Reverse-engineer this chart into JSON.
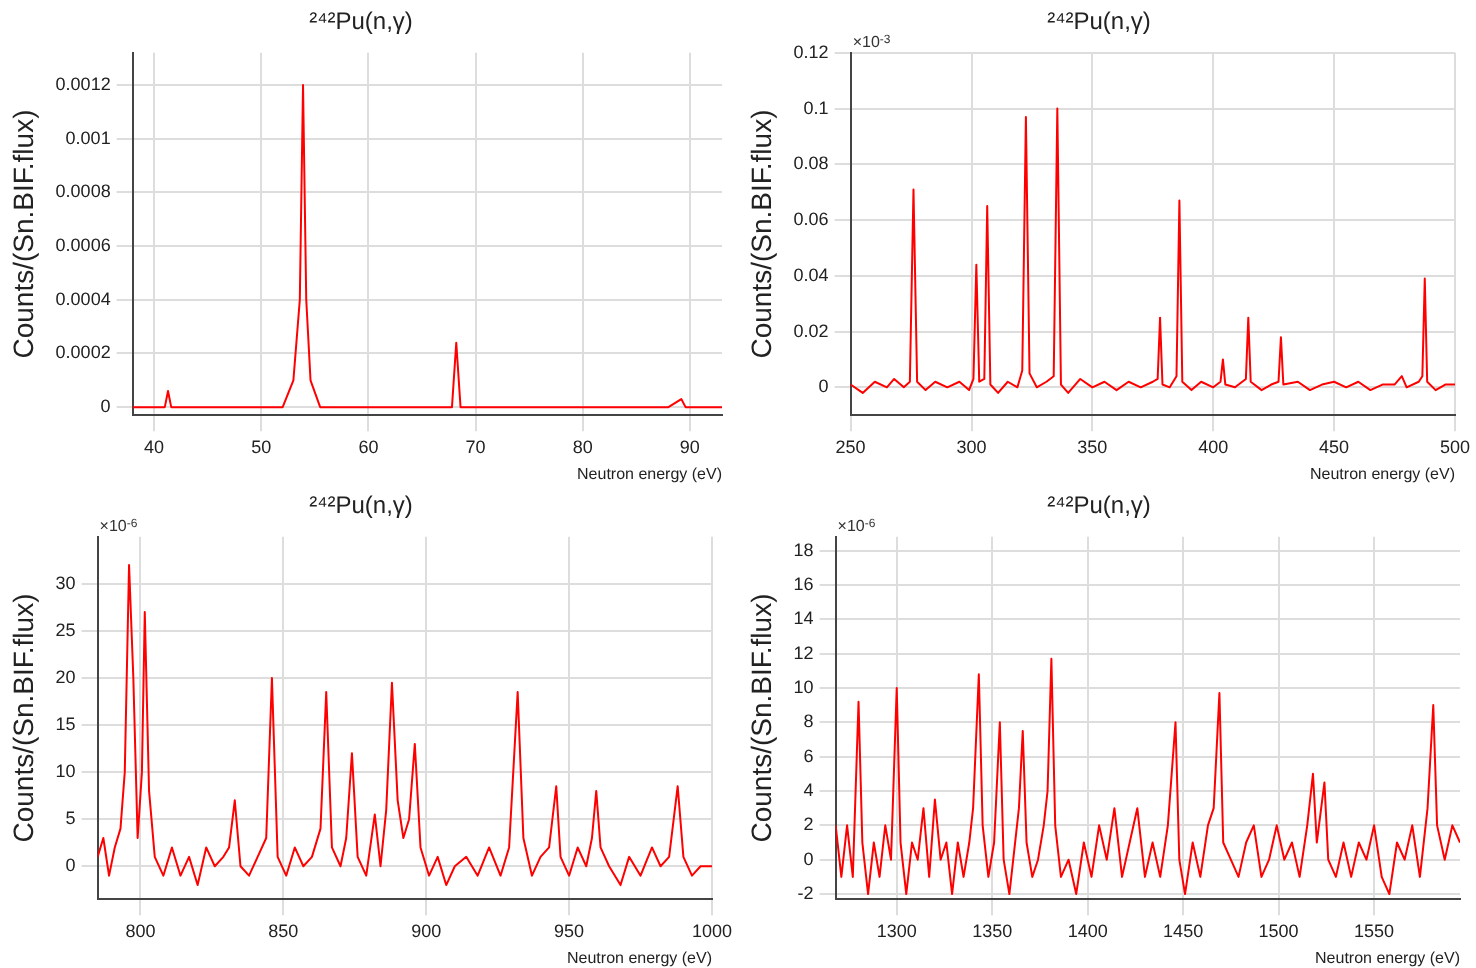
{
  "chart_data": [
    {
      "type": "line",
      "title": "²⁴²Pu(n,γ)",
      "xlabel": "Neutron energy (eV)",
      "ylabel": "Counts/(Sn.BIF.flux)",
      "grid": true,
      "xlim": [
        38,
        93
      ],
      "xticks": [
        40,
        50,
        60,
        70,
        80,
        90
      ],
      "ylim": [
        -3e-05,
        0.00132
      ],
      "yticks": [
        0,
        0.0002,
        0.0004,
        0.0006,
        0.0008,
        0.001,
        0.0012
      ],
      "x": [
        38,
        40,
        41,
        41.3,
        41.6,
        43,
        46,
        50,
        52,
        53,
        53.6,
        53.9,
        54.2,
        54.6,
        55.5,
        58,
        62,
        66,
        67.8,
        68.2,
        68.6,
        72,
        76,
        80,
        84,
        88,
        89.2,
        89.6,
        93
      ],
      "series": [
        {
          "color": "#ff0000",
          "values": [
            0,
            0,
            0,
            6e-05,
            0,
            0,
            0,
            0,
            0,
            0.0001,
            0.0004,
            0.0012,
            0.0004,
            0.0001,
            0,
            0,
            0,
            0,
            0,
            0.00024,
            0,
            0,
            0,
            0,
            0,
            0,
            3e-05,
            0,
            0
          ]
        }
      ]
    },
    {
      "type": "line",
      "title": "²⁴²Pu(n,γ)",
      "xlabel": "Neutron energy (eV)",
      "ylabel": "Counts/(Sn.BIF.flux)",
      "grid": true,
      "annotations": [
        "×10$^{-3}$"
      ],
      "xlim": [
        250,
        500
      ],
      "xticks": [
        250,
        300,
        350,
        400,
        450,
        500
      ],
      "ylim": [
        -0.01,
        0.12
      ],
      "yticks": [
        0,
        0.02,
        0.04,
        0.06,
        0.08,
        0.1,
        0.12
      ],
      "x": [
        250,
        255,
        260,
        265,
        268,
        272,
        274.5,
        276,
        277.5,
        281,
        285,
        290,
        295,
        299,
        300.8,
        302,
        303.2,
        305.3,
        306.5,
        307.8,
        311,
        315,
        319,
        321,
        322.5,
        324,
        327,
        331,
        334,
        335.5,
        337,
        340,
        345,
        350,
        355,
        360,
        365,
        370,
        375,
        377,
        378,
        379,
        382,
        384.8,
        386,
        387.2,
        391,
        395,
        400,
        403,
        404,
        405,
        409,
        413.5,
        414.5,
        415.5,
        420,
        424,
        427,
        428,
        429,
        435,
        440,
        445,
        450,
        455,
        460,
        465,
        470,
        475,
        478,
        480,
        485,
        486.5,
        487.5,
        488.5,
        492,
        496,
        500
      ],
      "series": [
        {
          "color": "#ff0000",
          "values": [
            0.001,
            -0.002,
            0.002,
            0,
            0.003,
            0,
            0.002,
            0.071,
            0.002,
            -0.001,
            0.002,
            0,
            0.002,
            -0.001,
            0.003,
            0.044,
            0.002,
            0.003,
            0.065,
            0.001,
            -0.002,
            0.002,
            0,
            0.006,
            0.097,
            0.005,
            0,
            0.002,
            0.004,
            0.1,
            0.001,
            -0.002,
            0.003,
            0,
            0.002,
            -0.001,
            0.002,
            0,
            0.002,
            0.003,
            0.025,
            0.001,
            0,
            0.004,
            0.067,
            0.002,
            -0.001,
            0.002,
            0,
            0.002,
            0.01,
            0.001,
            0,
            0.003,
            0.025,
            0.002,
            -0.001,
            0.001,
            0.002,
            0.018,
            0.001,
            0.002,
            -0.001,
            0.001,
            0.002,
            0,
            0.002,
            -0.001,
            0.001,
            0.001,
            0.004,
            0,
            0.002,
            0.004,
            0.039,
            0.002,
            -0.001,
            0.001,
            0.001
          ]
        }
      ]
    },
    {
      "type": "line",
      "title": "²⁴²Pu(n,γ)",
      "xlabel": "Neutron energy (eV)",
      "ylabel": "Counts/(Sn.BIF.flux)",
      "grid": true,
      "annotations": [
        "×10$^{-6}$"
      ],
      "xlim": [
        785,
        1000
      ],
      "xticks": [
        800,
        850,
        900,
        950,
        1000
      ],
      "ylim": [
        -3.5,
        35
      ],
      "yticks": [
        0,
        5,
        10,
        15,
        20,
        25,
        30
      ],
      "x": [
        785,
        787,
        789,
        791,
        793,
        794.5,
        796,
        797.5,
        799,
        800.5,
        801.5,
        803,
        805,
        808,
        811,
        814,
        817,
        820,
        823,
        826,
        829,
        831,
        833,
        835,
        838,
        841,
        844,
        846,
        848,
        851,
        854,
        857,
        860,
        863,
        865,
        867,
        870,
        872,
        874,
        876,
        879,
        882,
        884,
        886,
        888,
        890,
        892,
        894,
        896,
        898,
        901,
        904,
        907,
        910,
        914,
        918,
        922,
        926,
        929,
        932,
        934,
        937,
        940,
        943,
        945.5,
        947,
        950,
        953,
        956,
        958,
        959.5,
        961,
        964,
        968,
        971,
        975,
        979,
        982,
        985,
        988,
        990,
        993,
        996,
        1000
      ],
      "series": [
        {
          "color": "#ff0000",
          "values": [
            1,
            3,
            -1,
            2,
            4,
            10,
            32,
            20,
            3,
            10,
            27,
            8,
            1,
            -1,
            2,
            -1,
            1,
            -2,
            2,
            0,
            1,
            2,
            7,
            0,
            -1,
            1,
            3,
            20,
            1,
            -1,
            2,
            0,
            1,
            4,
            18.5,
            2,
            0,
            3,
            12,
            1,
            -1,
            5.5,
            0,
            6,
            19.5,
            7,
            3,
            5,
            13,
            2,
            -1,
            1,
            -2,
            0,
            1,
            -1,
            2,
            -1,
            2,
            18.5,
            3,
            -1,
            1,
            2,
            8.5,
            1,
            -1,
            2,
            0,
            3,
            8,
            2,
            0,
            -2,
            1,
            -1,
            2,
            0,
            1,
            8.5,
            1,
            -1,
            0,
            0
          ]
        }
      ]
    },
    {
      "type": "line",
      "title": "²⁴²Pu(n,γ)",
      "xlabel": "Neutron energy (eV)",
      "ylabel": "Counts/(Sn.BIF.flux)",
      "grid": true,
      "annotations": [
        "×10$^{-6}$"
      ],
      "xlim": [
        1268,
        1595
      ],
      "xticks": [
        1300,
        1350,
        1400,
        1450,
        1500,
        1550
      ],
      "ylim": [
        -2.3,
        18.8
      ],
      "yticks": [
        -2,
        0,
        2,
        4,
        6,
        8,
        10,
        12,
        14,
        16,
        18
      ],
      "x": [
        1268,
        1271,
        1274,
        1277,
        1280,
        1282,
        1285,
        1288,
        1291,
        1294,
        1297,
        1300,
        1302,
        1305,
        1308,
        1311,
        1314,
        1317,
        1320,
        1323,
        1326,
        1329,
        1332,
        1335,
        1338,
        1340,
        1343,
        1345,
        1348,
        1351,
        1354,
        1356,
        1359,
        1362,
        1364,
        1366,
        1368,
        1371,
        1374,
        1377,
        1379,
        1381,
        1383,
        1386,
        1390,
        1394,
        1398,
        1402,
        1406,
        1410,
        1414,
        1418,
        1422,
        1426,
        1430,
        1434,
        1438,
        1442,
        1446,
        1448,
        1451,
        1455,
        1459,
        1463,
        1466,
        1469,
        1471,
        1475,
        1479,
        1483,
        1487,
        1491,
        1495,
        1499,
        1503,
        1507,
        1511,
        1515,
        1518,
        1520,
        1524,
        1526,
        1530,
        1534,
        1538,
        1542,
        1546,
        1550,
        1554,
        1558,
        1562,
        1566,
        1570,
        1574,
        1578,
        1581,
        1583,
        1587,
        1591,
        1595
      ],
      "series": [
        {
          "color": "#ff0000",
          "values": [
            2,
            -1,
            2,
            -1,
            9.2,
            1,
            -2,
            1,
            -1,
            2,
            0,
            10,
            1,
            -2,
            1,
            0,
            3,
            -1,
            3.5,
            0,
            1,
            -2,
            1,
            -1,
            1,
            3,
            10.8,
            2,
            -1,
            1,
            8,
            0,
            -2,
            1,
            3,
            7.5,
            1,
            -1,
            0,
            2,
            4,
            11.7,
            2,
            -1,
            0,
            -2,
            1,
            -1,
            2,
            0,
            3,
            -1,
            1,
            3,
            -1,
            1,
            -1,
            2,
            8,
            0,
            -2,
            1,
            -1,
            2,
            3,
            9.7,
            1,
            0,
            -1,
            1,
            2,
            -1,
            0,
            2,
            0,
            1,
            -1,
            2,
            5,
            1,
            4.5,
            0,
            -1,
            1,
            -1,
            1,
            0,
            2,
            -1,
            -2,
            1,
            0,
            2,
            -1,
            3,
            9,
            2,
            0,
            2,
            1
          ]
        }
      ]
    }
  ]
}
